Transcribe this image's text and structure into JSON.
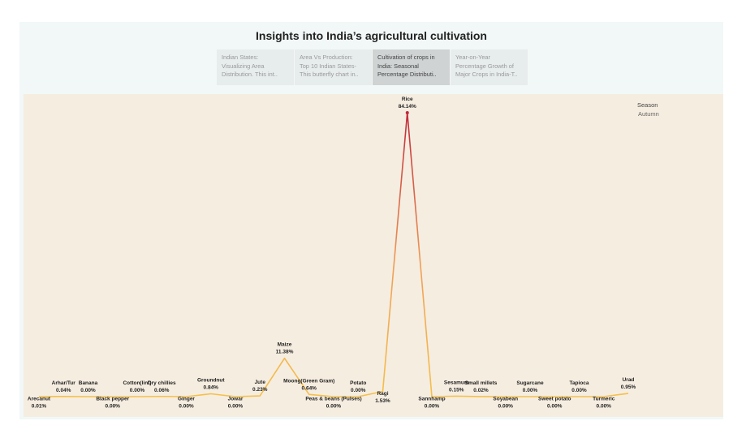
{
  "dashboard": {
    "title": "Insights into India’s agricultural cultivation",
    "tabs": [
      {
        "lines": [
          "Indian States:",
          "Visualizing Area",
          "Distribution.  This int.."
        ],
        "active": false
      },
      {
        "lines": [
          "Area Vs Production:",
          "Top 10 Indian States-",
          "This butterfly chart in.."
        ],
        "active": false
      },
      {
        "lines": [
          "Cultivation of crops in",
          "India: Seasonal",
          "Percentage Distributi.."
        ],
        "active": true
      },
      {
        "lines": [
          "Year-on-Year",
          "Percentage Growth of",
          "Major Crops in India-T.."
        ],
        "active": false
      }
    ]
  },
  "legend": {
    "title": "Season",
    "item": "Autumn"
  },
  "colors": {
    "low": "#f5c04a",
    "mid": "#f0a058",
    "high": "#c0283a"
  },
  "chart_data": {
    "type": "line",
    "series": [
      {
        "name": "Autumn",
        "values": [
          0.01,
          0.04,
          0.0,
          0.0,
          0.0,
          0.06,
          0.0,
          0.84,
          0.0,
          0.23,
          11.38,
          0.64,
          0.0,
          0.0,
          1.53,
          84.14,
          0.0,
          0.15,
          0.02,
          0.0,
          0.0,
          0.0,
          0.0,
          0.0,
          0.95
        ]
      }
    ],
    "categories": [
      "Arecanut",
      "Arhar/Tur",
      "Banana",
      "Black pepper",
      "Cotton(lint)",
      "Dry chillies",
      "Ginger",
      "Groundnut",
      "Jowar",
      "Jute",
      "Maize",
      "Moong(Green Gram)",
      "Peas & beans (Pulses)",
      "Potato",
      "Ragi",
      "Rice",
      "Sannhamp",
      "Sesamum",
      "Small millets",
      "Soyabean",
      "Sugarcane",
      "Sweet potato",
      "Tapioca",
      "Turmeric",
      "Urad"
    ],
    "value_labels": [
      "0.01%",
      "0.04%",
      "0.00%",
      "0.00%",
      "0.00%",
      "0.06%",
      "0.00%",
      "0.84%",
      "0.00%",
      "0.23%",
      "11.38%",
      "0.64%",
      "0.00%",
      "0.00%",
      "1.53%",
      "84.14%",
      "0.00%",
      "0.15%",
      "0.02%",
      "0.00%",
      "0.00%",
      "0.00%",
      "0.00%",
      "0.00%",
      "0.95%"
    ],
    "label_position": [
      "below",
      "above",
      "above",
      "below",
      "above",
      "above",
      "below",
      "above",
      "below",
      "above",
      "above",
      "above",
      "below",
      "above",
      "below",
      "above",
      "below",
      "above",
      "above",
      "below",
      "above",
      "below",
      "above",
      "below",
      "above"
    ],
    "ylim": [
      0,
      84.14
    ]
  }
}
